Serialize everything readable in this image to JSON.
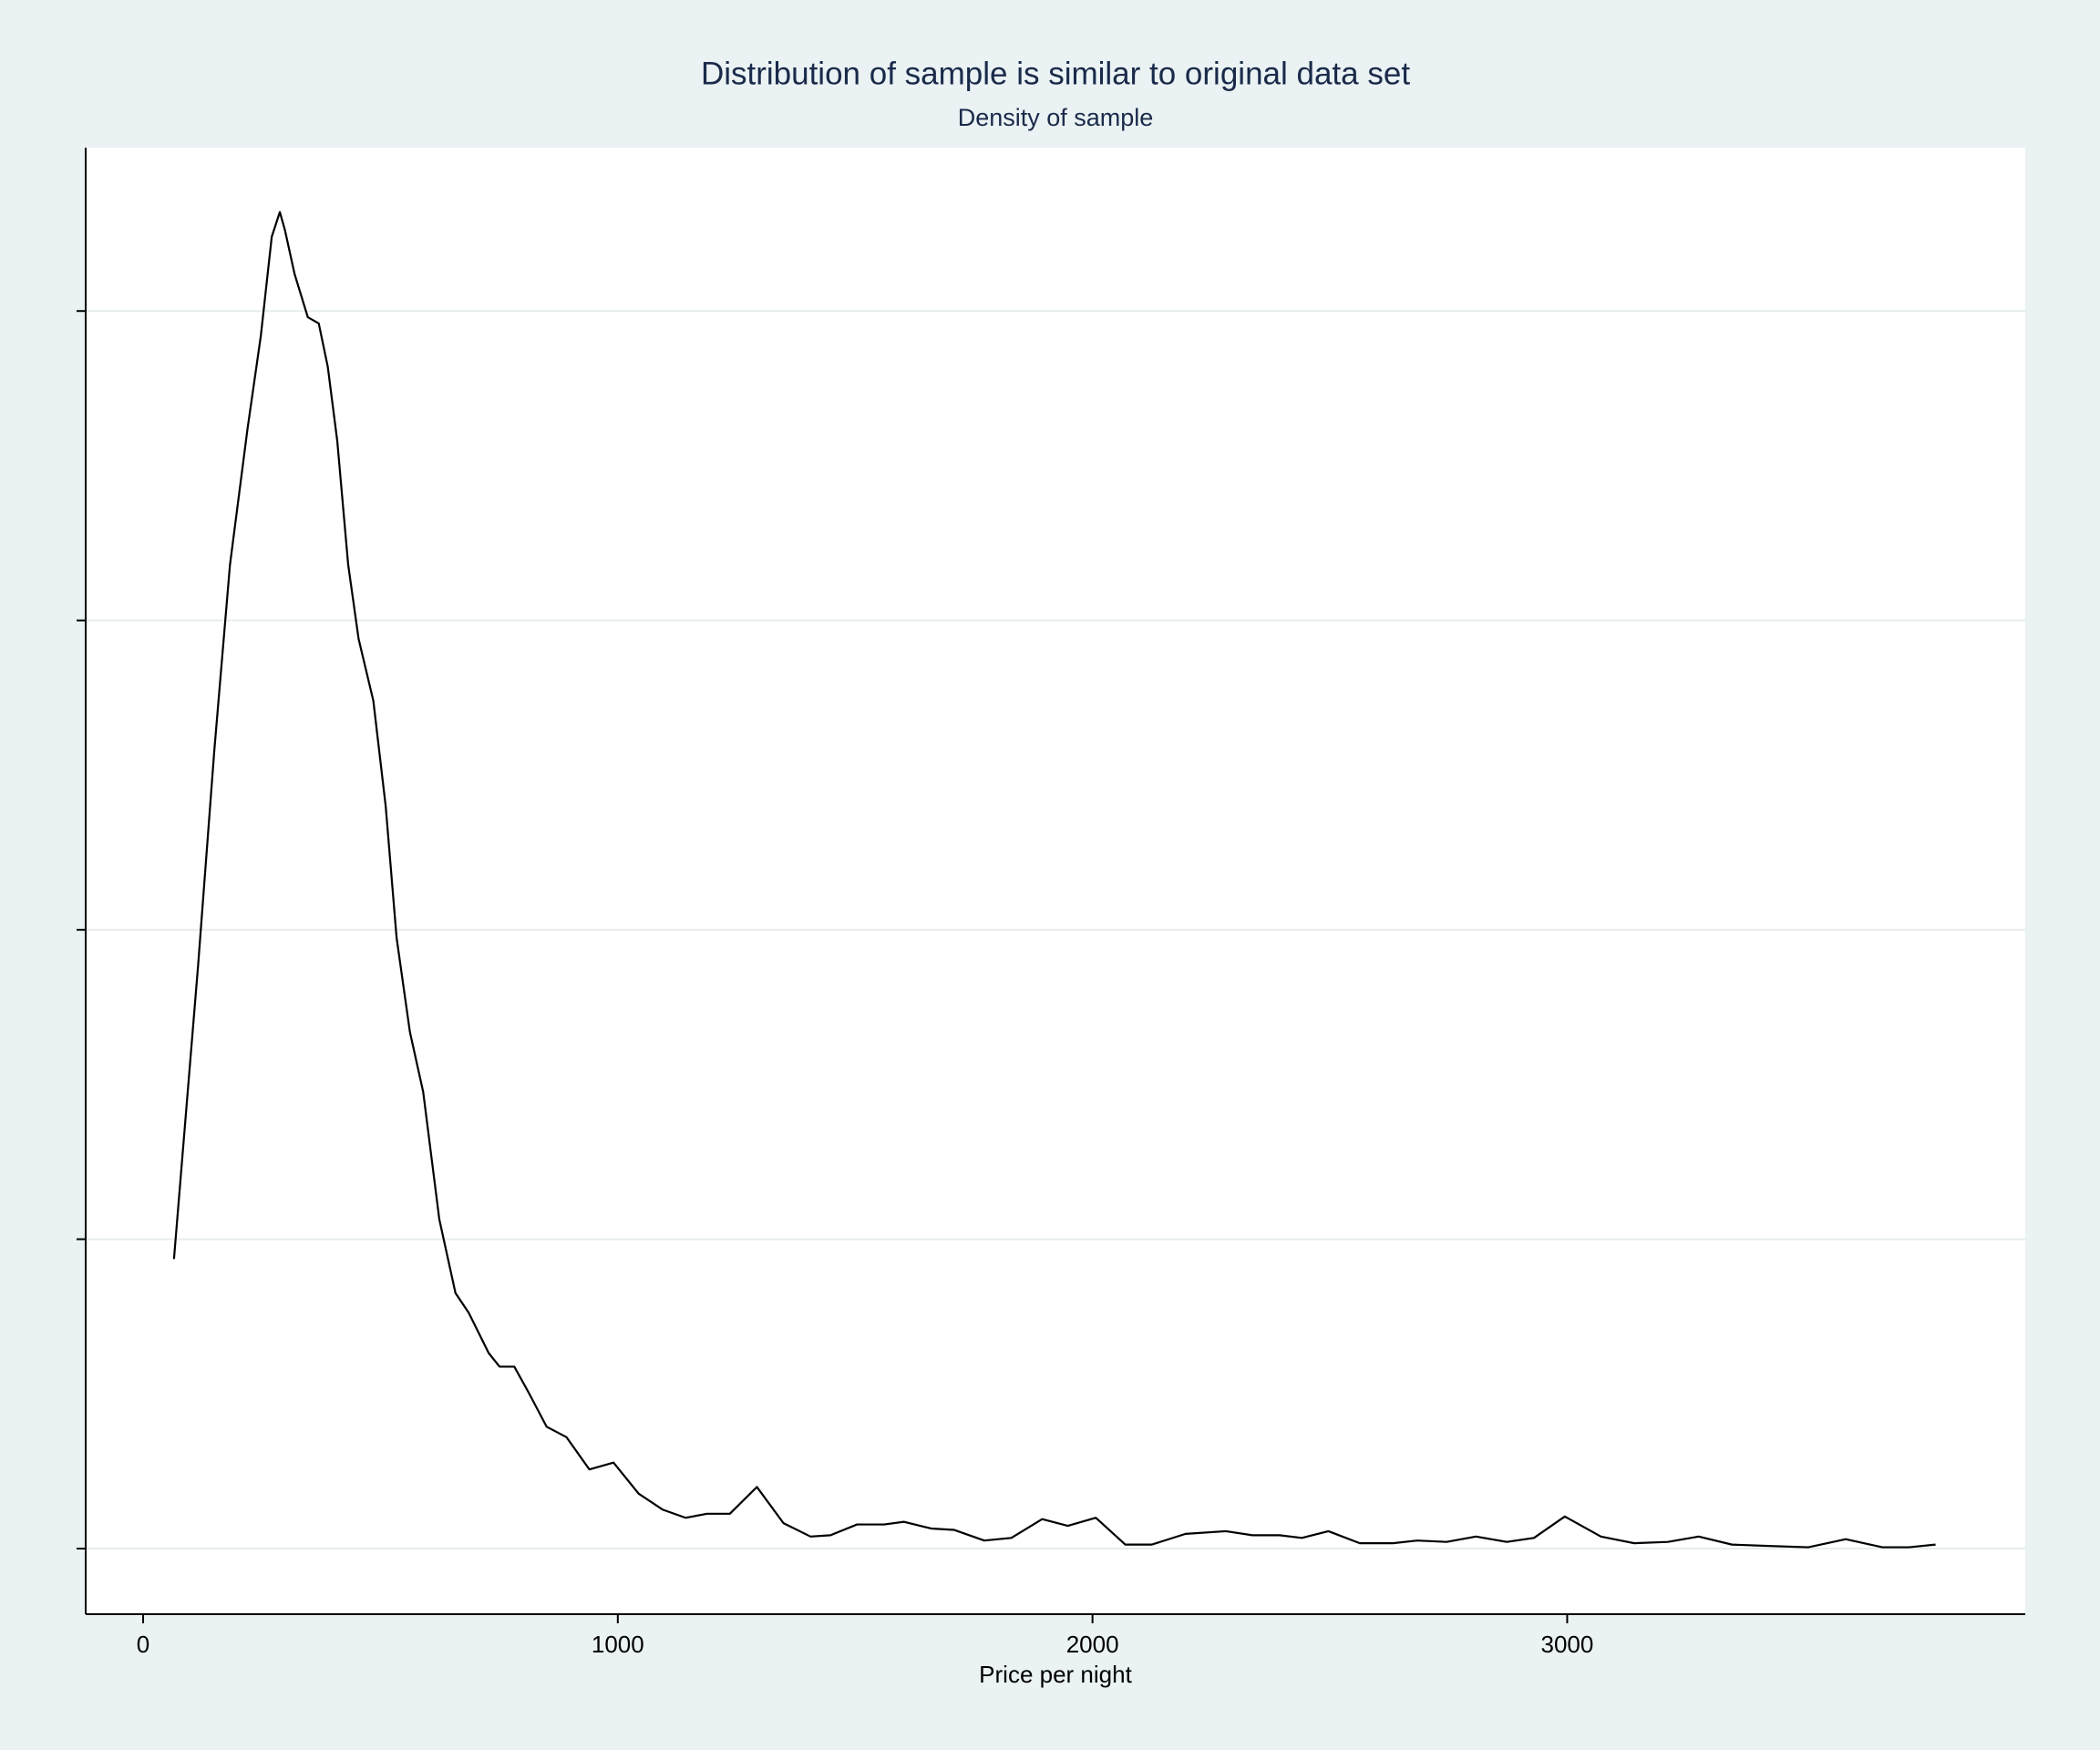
{
  "chart_data": {
    "type": "line",
    "title": "Distribution of sample is similar to original data set",
    "subtitle": "Density of sample",
    "x_label": "Price per night",
    "x": [
      65,
      116,
      150,
      183,
      220,
      248,
      271,
      288,
      299,
      319,
      347,
      370,
      389,
      409,
      432,
      454,
      485,
      511,
      534,
      562,
      590,
      624,
      658,
      686,
      728,
      751,
      782,
      813,
      850,
      892,
      940,
      991,
      1044,
      1095,
      1143,
      1188,
      1236,
      1293,
      1349,
      1406,
      1448,
      1504,
      1561,
      1603,
      1660,
      1708,
      1772,
      1829,
      1894,
      1948,
      2007,
      2069,
      2125,
      2196,
      2281,
      2337,
      2394,
      2441,
      2497,
      2563,
      2633,
      2684,
      2746,
      2808,
      2873,
      2930,
      2995,
      3071,
      3141,
      3212,
      3277,
      3347,
      3424,
      3508,
      3587,
      3664,
      3720,
      3776
    ],
    "series": [
      {
        "color": "#000000",
        "values": [
          0.000468,
          0.000944,
          0.00129,
          0.00159,
          0.00181,
          0.00196,
          0.00212,
          0.00216,
          0.00213,
          0.00206,
          0.00199,
          0.00198,
          0.00191,
          0.00179,
          0.00159,
          0.00147,
          0.00137,
          0.0012,
          0.000987,
          0.000835,
          0.000738,
          0.000532,
          0.000413,
          0.000381,
          0.000316,
          0.000294,
          0.000294,
          0.000251,
          0.000197,
          0.00018,
          0.000128,
          0.000139,
          8.87e-05,
          6.28e-05,
          4.98e-05,
          5.63e-05,
          5.63e-05,
          9.96e-05,
          4.11e-05,
          1.95e-05,
          2.16e-05,
          3.9e-05,
          3.9e-05,
          4.33e-05,
          3.25e-05,
          3.03e-05,
          1.3e-05,
          1.73e-05,
          4.76e-05,
          3.68e-05,
          4.98e-05,
          6.5e-06,
          6.5e-06,
          2.38e-05,
          2.81e-05,
          2.16e-05,
          2.16e-05,
          1.73e-05,
          2.81e-05,
          8.7e-06,
          8.7e-06,
          1.3e-05,
          1.08e-05,
          1.95e-05,
          1.08e-05,
          1.73e-05,
          5.19e-05,
          1.95e-05,
          8.7e-06,
          1.08e-05,
          1.95e-05,
          6.5e-06,
          4.3e-06,
          2.2e-06,
          1.52e-05,
          2.2e-06,
          2.2e-06,
          6.5e-06
        ]
      }
    ],
    "xlim": [
      -121,
      3965
    ],
    "xticks": [
      0,
      1000,
      2000,
      3000
    ],
    "ylim": [
      -0.000106,
      0.002264
    ],
    "yticks": [
      0,
      0.0005,
      0.001,
      0.0015,
      0.002
    ],
    "grid": true
  }
}
